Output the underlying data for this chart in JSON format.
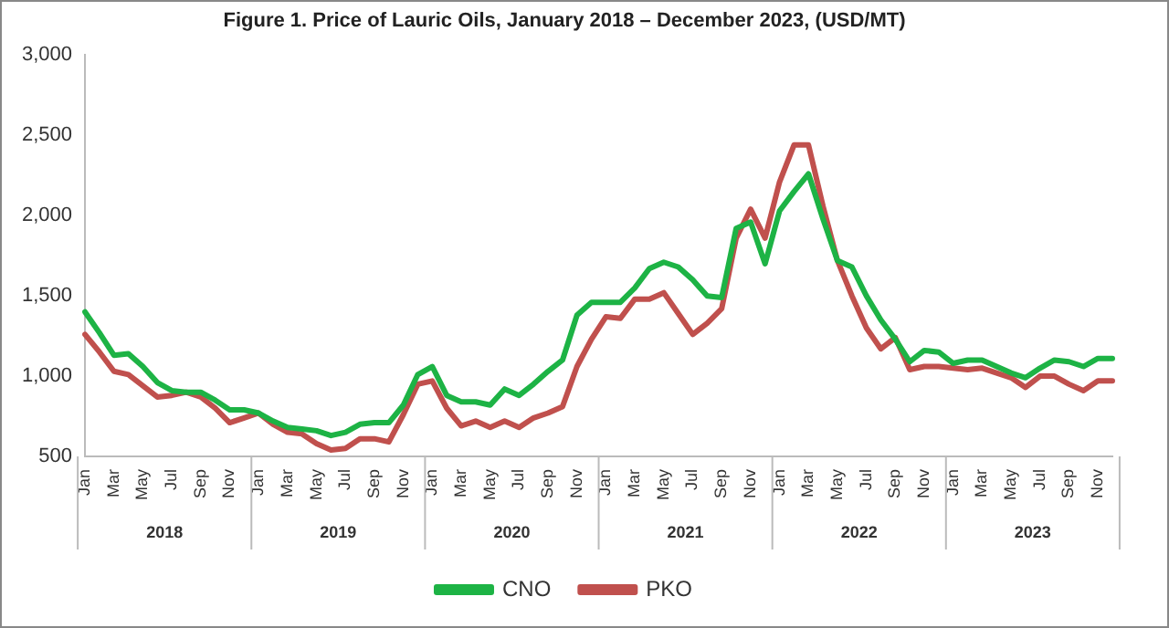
{
  "chart_data": {
    "type": "line",
    "title": "Figure 1. Price of Lauric Oils, January 2018 – December 2023, (USD/MT)",
    "categories": [
      "Jan",
      null,
      "Mar",
      null,
      "May",
      null,
      "Jul",
      null,
      "Sep",
      null,
      "Nov",
      null,
      "Jan",
      null,
      "Mar",
      null,
      "May",
      null,
      "Jul",
      null,
      "Sep",
      null,
      "Nov",
      null,
      "Jan",
      null,
      "Mar",
      null,
      "May",
      null,
      "Jul",
      null,
      "Sep",
      null,
      "Nov",
      null,
      "Jan",
      null,
      "Mar",
      null,
      "May",
      null,
      "Jul",
      null,
      "Sep",
      null,
      "Nov",
      null,
      "Jan",
      null,
      "Mar",
      null,
      "May",
      null,
      "Jul",
      null,
      "Sep",
      null,
      "Nov",
      null,
      "Jan",
      null,
      "Mar",
      null,
      "May",
      null,
      "Jul",
      null,
      "Sep",
      null,
      "Nov",
      null
    ],
    "annotations": [
      "2018",
      "2019",
      "2020",
      "2021",
      "2022",
      "2023"
    ],
    "series": [
      {
        "name": "CNO",
        "color": "#1db345",
        "values": [
          1400,
          1270,
          1130,
          1140,
          1060,
          960,
          910,
          900,
          900,
          850,
          790,
          790,
          770,
          720,
          680,
          670,
          660,
          630,
          650,
          700,
          710,
          710,
          820,
          1010,
          1060,
          880,
          840,
          840,
          820,
          920,
          880,
          950,
          1030,
          1100,
          1380,
          1460,
          1460,
          1460,
          1550,
          1670,
          1710,
          1680,
          1600,
          1500,
          1490,
          1920,
          1960,
          1700,
          2030,
          2150,
          2260,
          1980,
          1720,
          1680,
          1500,
          1350,
          1230,
          1090,
          1160,
          1150,
          1080,
          1100,
          1100,
          1060,
          1020,
          990,
          1050,
          1100,
          1090,
          1060,
          1110,
          1110
        ]
      },
      {
        "name": "PKO",
        "color": "#c0504d",
        "values": [
          1260,
          1150,
          1030,
          1010,
          940,
          870,
          880,
          900,
          870,
          800,
          710,
          740,
          770,
          700,
          650,
          640,
          580,
          540,
          550,
          610,
          610,
          590,
          760,
          950,
          970,
          800,
          690,
          720,
          680,
          720,
          680,
          740,
          770,
          810,
          1060,
          1230,
          1370,
          1360,
          1480,
          1480,
          1520,
          1390,
          1260,
          1330,
          1420,
          1860,
          2040,
          1860,
          2210,
          2440,
          2440,
          2060,
          1720,
          1500,
          1300,
          1170,
          1240,
          1040,
          1060,
          1060,
          1050,
          1040,
          1050,
          1020,
          990,
          930,
          1000,
          1000,
          950,
          910,
          970,
          970
        ]
      }
    ],
    "ylim": [
      500,
      3000
    ],
    "yticks": [
      {
        "value": 500,
        "label": "500"
      },
      {
        "value": 1000,
        "label": "1,000"
      },
      {
        "value": 1500,
        "label": "1,500"
      },
      {
        "value": 2000,
        "label": "2,000"
      },
      {
        "value": 2500,
        "label": "2,500"
      },
      {
        "value": 3000,
        "label": "3,000"
      }
    ],
    "grid": false,
    "legend": "bottom",
    "marker": "none",
    "line_style": "solid"
  }
}
